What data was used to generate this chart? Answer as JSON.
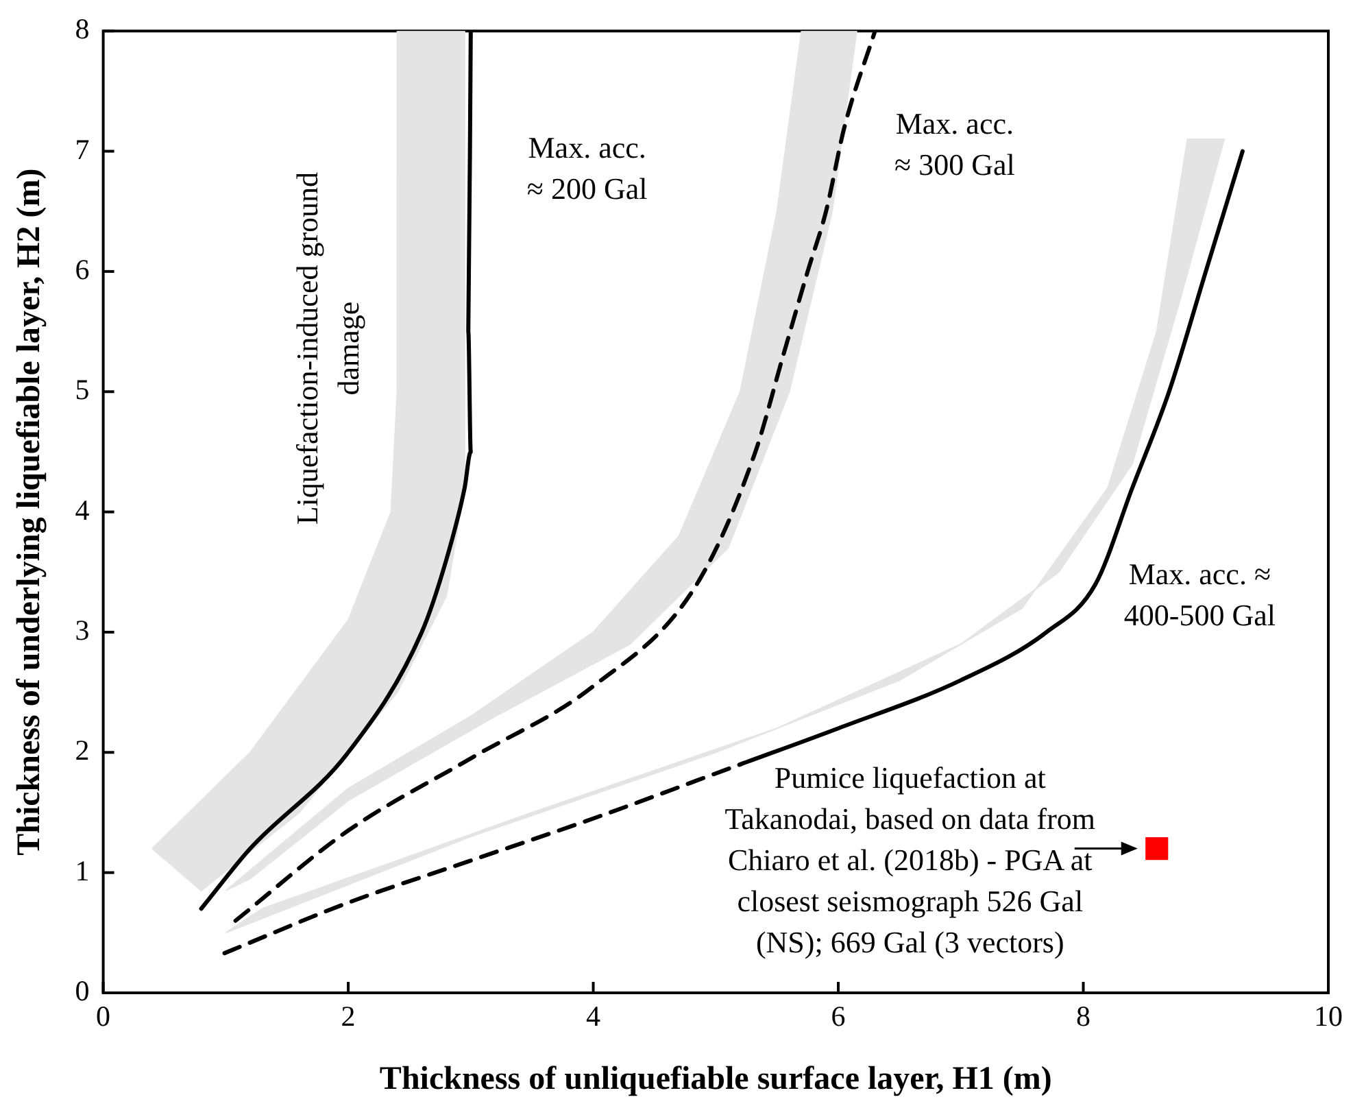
{
  "chart_data": {
    "type": "line",
    "xlabel": "Thickness of unliquefiable surface layer, H1 (m)",
    "ylabel": "Thickness of underlying liquefiable layer, H2 (m)",
    "xlim": [
      0,
      10
    ],
    "ylim": [
      0,
      8
    ],
    "xticks": [
      0,
      2,
      4,
      6,
      8,
      10
    ],
    "yticks": [
      0,
      1,
      2,
      3,
      4,
      5,
      6,
      7,
      8
    ],
    "grid": false,
    "legend": false,
    "series": [
      {
        "type": "area",
        "color": "#e4e4e4",
        "x": [
          0.4,
          1.2,
          2.0,
          2.35,
          2.4,
          2.4,
          2.95,
          2.95,
          2.8,
          2.4,
          1.6,
          0.8,
          0.4
        ],
        "values": [
          1.2,
          2.0,
          3.1,
          4.0,
          5.0,
          8.0,
          8.0,
          4.2,
          3.3,
          2.5,
          1.5,
          0.85,
          1.2
        ]
      },
      {
        "type": "area",
        "color": "#e4e4e4",
        "x": [
          1.0,
          2.0,
          3.0,
          4.0,
          4.7,
          5.2,
          5.5,
          5.7,
          6.15,
          5.95,
          5.6,
          5.1,
          4.3,
          3.2,
          2.0,
          1.2,
          1.0
        ],
        "values": [
          0.85,
          1.7,
          2.3,
          3.0,
          3.8,
          5.0,
          6.5,
          8.0,
          8.0,
          6.5,
          5.0,
          3.7,
          2.9,
          2.3,
          1.6,
          0.95,
          0.85
        ]
      },
      {
        "type": "area",
        "color": "#e4e4e4",
        "x": [
          1.0,
          3.0,
          5.0,
          6.5,
          7.5,
          8.2,
          8.6,
          8.85,
          9.15,
          8.8,
          8.4,
          7.8,
          7.0,
          5.5,
          3.5,
          1.3,
          1.0
        ],
        "values": [
          0.5,
          1.3,
          2.0,
          2.6,
          3.2,
          4.2,
          5.5,
          7.1,
          7.1,
          5.8,
          4.4,
          3.5,
          2.9,
          2.2,
          1.5,
          0.7,
          0.5
        ]
      },
      {
        "color": "#000000",
        "line_style": "solid",
        "x": [
          0.8,
          1.2,
          2.0,
          2.6,
          2.8,
          2.95,
          3.0,
          2.98,
          3.0
        ],
        "values": [
          0.7,
          1.2,
          2.0,
          3.0,
          3.6,
          4.2,
          4.5,
          5.5,
          8.0
        ]
      },
      {
        "color": "#000000",
        "line_style": "dashed",
        "x": [
          1.08,
          2.0,
          3.0,
          4.0,
          4.84,
          5.32,
          5.55,
          5.75,
          5.9,
          6.05,
          6.3
        ],
        "values": [
          0.6,
          1.35,
          1.95,
          2.55,
          3.39,
          4.49,
          5.3,
          6.0,
          6.5,
          7.2,
          8.0
        ]
      },
      {
        "color": "#000000",
        "line_style": "dashed",
        "x": [
          0.99,
          2.0,
          3.0,
          4.0,
          5.2
        ],
        "values": [
          0.33,
          0.75,
          1.1,
          1.45,
          1.9
        ]
      },
      {
        "color": "#000000",
        "line_style": "solid",
        "x": [
          5.2,
          6.0,
          7.0,
          7.7,
          8.1,
          8.4,
          8.7,
          9.0,
          9.3
        ],
        "values": [
          1.9,
          2.2,
          2.6,
          3.0,
          3.4,
          4.2,
          5.0,
          6.0,
          7.0
        ]
      },
      {
        "type": "scatter",
        "color": "#ff0000",
        "marker": "square",
        "x": [
          8.6
        ],
        "values": [
          1.2
        ]
      }
    ],
    "annotations": [
      "Liquefaction-induced ground damage",
      "Max. acc. ≈ 200 Gal",
      "Max. acc. ≈ 300 Gal",
      "Max. acc. ≈ 400-500 Gal",
      {
        "text": "Pumice liquefaction at Takanodai, based on data from Chiaro et al. (2018b) - PGA at closest seismograph 526 Gal (NS); 669 Gal (3 vectors)",
        "x": 8.6,
        "y": 1.2
      }
    ]
  }
}
